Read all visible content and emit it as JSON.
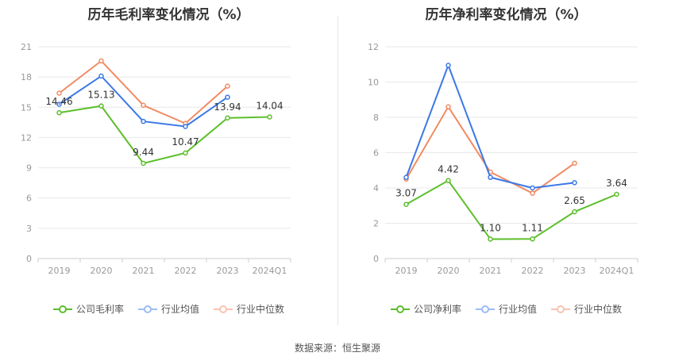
{
  "source": "数据来源：恒生聚源",
  "colors": {
    "company": "#5cbf2a",
    "avg": "#3b78e7",
    "median": "#f28a63",
    "grid": "#e8e8e8",
    "axis": "#999999"
  },
  "chart_data": [
    {
      "type": "line",
      "title": "历年毛利率变化情况（%）",
      "categories": [
        "2019",
        "2020",
        "2021",
        "2022",
        "2023",
        "2024Q1"
      ],
      "ylim": [
        0,
        21
      ],
      "yticks": [
        0,
        3,
        6,
        9,
        12,
        15,
        18,
        21
      ],
      "series": [
        {
          "name": "公司毛利率",
          "key": "company",
          "values": [
            14.46,
            15.13,
            9.44,
            10.47,
            13.94,
            14.04
          ],
          "labels": [
            "14.46",
            "15.13",
            "9.44",
            "10.47",
            "13.94",
            "14.04"
          ]
        },
        {
          "name": "行业均值",
          "key": "avg",
          "values": [
            15.3,
            18.1,
            13.6,
            13.1,
            16.0,
            null
          ]
        },
        {
          "name": "行业中位数",
          "key": "median",
          "values": [
            16.4,
            19.6,
            15.2,
            13.4,
            17.1,
            null
          ]
        }
      ],
      "legend": [
        "公司毛利率",
        "行业均值",
        "行业中位数"
      ]
    },
    {
      "type": "line",
      "title": "历年净利率变化情况（%）",
      "categories": [
        "2019",
        "2020",
        "2021",
        "2022",
        "2023",
        "2024Q1"
      ],
      "ylim": [
        0,
        12
      ],
      "yticks": [
        0,
        2,
        4,
        6,
        8,
        10,
        12
      ],
      "series": [
        {
          "name": "公司净利率",
          "key": "company",
          "values": [
            3.07,
            4.42,
            1.1,
            1.11,
            2.65,
            3.64
          ],
          "labels": [
            "3.07",
            "4.42",
            "1.10",
            "1.11",
            "2.65",
            "3.64"
          ]
        },
        {
          "name": "行业均值",
          "key": "avg",
          "values": [
            4.6,
            10.95,
            4.6,
            4.0,
            4.3,
            null
          ]
        },
        {
          "name": "行业中位数",
          "key": "median",
          "values": [
            4.5,
            8.6,
            4.9,
            3.7,
            5.4,
            null
          ]
        }
      ],
      "legend": [
        "公司净利率",
        "行业均值",
        "行业中位数"
      ]
    }
  ]
}
